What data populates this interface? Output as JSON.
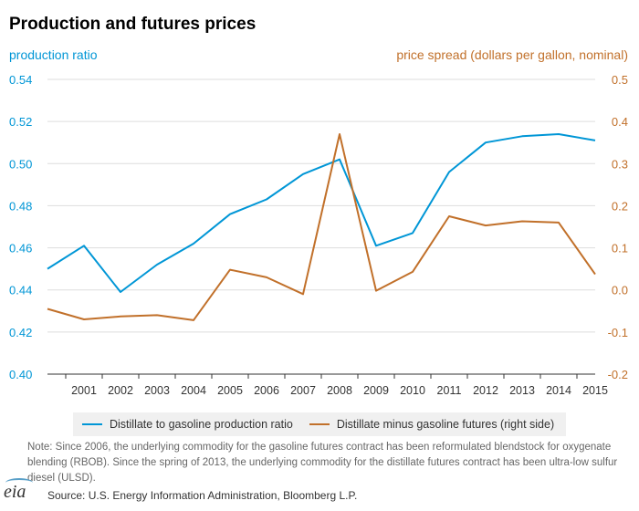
{
  "chart_data": {
    "type": "line",
    "title": "Production and futures prices",
    "x": [
      "2000",
      "2001",
      "2002",
      "2003",
      "2004",
      "2005",
      "2006",
      "2007",
      "2008",
      "2009",
      "2010",
      "2011",
      "2012",
      "2013",
      "2014",
      "2015"
    ],
    "x_tick_labels": [
      "2001",
      "2002",
      "2003",
      "2004",
      "2005",
      "2006",
      "2007",
      "2008",
      "2009",
      "2010",
      "2011",
      "2012",
      "2013",
      "2014",
      "2015"
    ],
    "y_left": {
      "label": "production ratio",
      "range": [
        0.4,
        0.54
      ],
      "ticks": [
        "0.40",
        "0.42",
        "0.44",
        "0.46",
        "0.48",
        "0.50",
        "0.52",
        "0.54"
      ],
      "tick_values": [
        0.4,
        0.42,
        0.44,
        0.46,
        0.48,
        0.5,
        0.52,
        0.54
      ]
    },
    "y_right": {
      "label": "price spread (dollars per gallon, nominal)",
      "range": [
        -0.2,
        0.5
      ],
      "ticks": [
        "-0.2",
        "-0.1",
        "0.0",
        "0.1",
        "0.2",
        "0.3",
        "0.4",
        "0.5"
      ],
      "tick_values": [
        -0.2,
        -0.1,
        0.0,
        0.1,
        0.2,
        0.3,
        0.4,
        0.5
      ]
    },
    "grid": true,
    "series": [
      {
        "name": "Distillate to gasoline production ratio",
        "axis": "left",
        "color": "#0096d6",
        "values": [
          0.45,
          0.461,
          0.439,
          0.452,
          0.462,
          0.476,
          0.483,
          0.495,
          0.502,
          0.461,
          0.467,
          0.496,
          0.51,
          0.513,
          0.514,
          0.511
        ]
      },
      {
        "name": "Distillate minus gasoline futures (right side)",
        "axis": "right",
        "color": "#c1702a",
        "values": [
          -0.045,
          -0.07,
          -0.063,
          -0.06,
          -0.072,
          0.048,
          0.03,
          -0.01,
          0.37,
          -0.002,
          0.043,
          0.175,
          0.153,
          0.163,
          0.16,
          0.037
        ]
      }
    ],
    "legend_position": "bottom"
  },
  "legend": {
    "item1": "Distillate to gasoline production ratio",
    "item2": "Distillate minus gasoline futures (right side)"
  },
  "note": "Note: Since 2006, the underlying commodity for the gasoline futures contract has been reformulated blendstock for oxygenate blending (RBOB). Since the spring of 2013, the underlying commodity for the distillate futures contract has been ultra-low sulfur diesel (ULSD).",
  "source": "Source: U.S. Energy Information Administration, Bloomberg L.P.",
  "logo": "eia",
  "colors": {
    "left_axis": "#0096d6",
    "right_axis": "#c1702a",
    "grid": "#dddddd"
  }
}
